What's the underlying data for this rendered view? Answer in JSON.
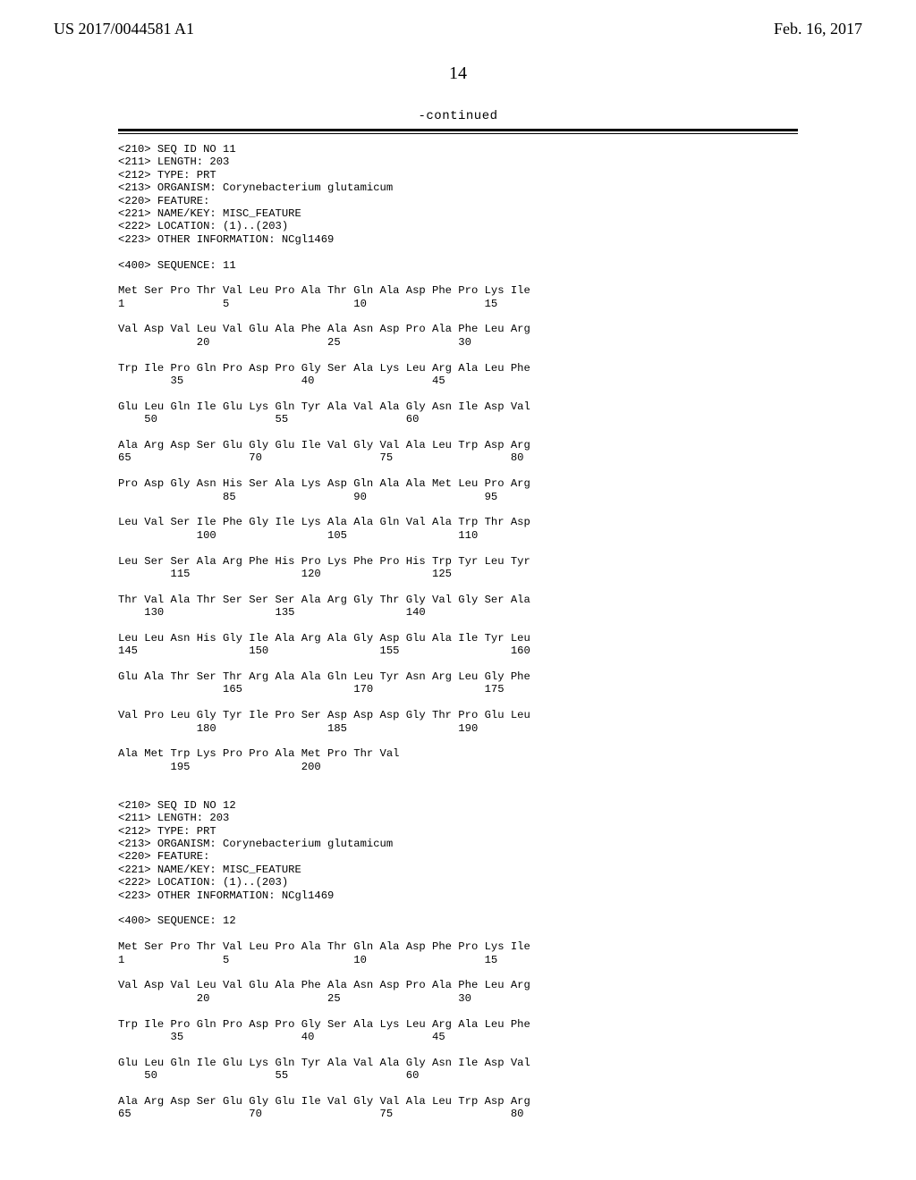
{
  "header": {
    "left": "US 2017/0044581 A1",
    "right": "Feb. 16, 2017"
  },
  "page_number": "14",
  "continued_label": "-continued",
  "seq_text": "<210> SEQ ID NO 11\n<211> LENGTH: 203\n<212> TYPE: PRT\n<213> ORGANISM: Corynebacterium glutamicum\n<220> FEATURE:\n<221> NAME/KEY: MISC_FEATURE\n<222> LOCATION: (1)..(203)\n<223> OTHER INFORMATION: NCgl1469\n\n<400> SEQUENCE: 11\n\nMet Ser Pro Thr Val Leu Pro Ala Thr Gln Ala Asp Phe Pro Lys Ile\n1               5                   10                  15\n\nVal Asp Val Leu Val Glu Ala Phe Ala Asn Asp Pro Ala Phe Leu Arg\n            20                  25                  30\n\nTrp Ile Pro Gln Pro Asp Pro Gly Ser Ala Lys Leu Arg Ala Leu Phe\n        35                  40                  45\n\nGlu Leu Gln Ile Glu Lys Gln Tyr Ala Val Ala Gly Asn Ile Asp Val\n    50                  55                  60\n\nAla Arg Asp Ser Glu Gly Glu Ile Val Gly Val Ala Leu Trp Asp Arg\n65                  70                  75                  80\n\nPro Asp Gly Asn His Ser Ala Lys Asp Gln Ala Ala Met Leu Pro Arg\n                85                  90                  95\n\nLeu Val Ser Ile Phe Gly Ile Lys Ala Ala Gln Val Ala Trp Thr Asp\n            100                 105                 110\n\nLeu Ser Ser Ala Arg Phe His Pro Lys Phe Pro His Trp Tyr Leu Tyr\n        115                 120                 125\n\nThr Val Ala Thr Ser Ser Ser Ala Arg Gly Thr Gly Val Gly Ser Ala\n    130                 135                 140\n\nLeu Leu Asn His Gly Ile Ala Arg Ala Gly Asp Glu Ala Ile Tyr Leu\n145                 150                 155                 160\n\nGlu Ala Thr Ser Thr Arg Ala Ala Gln Leu Tyr Asn Arg Leu Gly Phe\n                165                 170                 175\n\nVal Pro Leu Gly Tyr Ile Pro Ser Asp Asp Asp Gly Thr Pro Glu Leu\n            180                 185                 190\n\nAla Met Trp Lys Pro Pro Ala Met Pro Thr Val\n        195                 200\n\n\n<210> SEQ ID NO 12\n<211> LENGTH: 203\n<212> TYPE: PRT\n<213> ORGANISM: Corynebacterium glutamicum\n<220> FEATURE:\n<221> NAME/KEY: MISC_FEATURE\n<222> LOCATION: (1)..(203)\n<223> OTHER INFORMATION: NCgl1469\n\n<400> SEQUENCE: 12\n\nMet Ser Pro Thr Val Leu Pro Ala Thr Gln Ala Asp Phe Pro Lys Ile\n1               5                   10                  15\n\nVal Asp Val Leu Val Glu Ala Phe Ala Asn Asp Pro Ala Phe Leu Arg\n            20                  25                  30\n\nTrp Ile Pro Gln Pro Asp Pro Gly Ser Ala Lys Leu Arg Ala Leu Phe\n        35                  40                  45\n\nGlu Leu Gln Ile Glu Lys Gln Tyr Ala Val Ala Gly Asn Ile Asp Val\n    50                  55                  60\n\nAla Arg Asp Ser Glu Gly Glu Ile Val Gly Val Ala Leu Trp Asp Arg\n65                  70                  75                  80"
}
